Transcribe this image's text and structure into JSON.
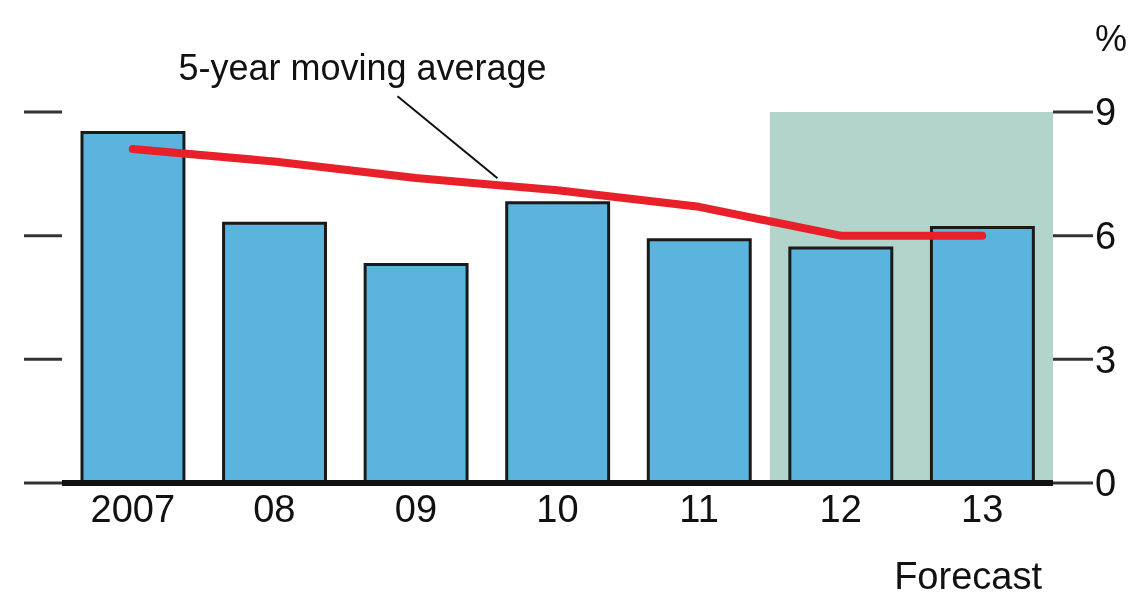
{
  "chart_data": {
    "type": "bar",
    "categories": [
      "2007",
      "08",
      "09",
      "10",
      "11",
      "12",
      "13"
    ],
    "series": [
      {
        "color": "#5bb4dd",
        "values": [
          8.5,
          6.3,
          5.3,
          6.8,
          5.9,
          5.7,
          6.2
        ]
      },
      {
        "type": "line",
        "name": "5-year moving average",
        "color": "#e8202a",
        "values": [
          8.1,
          7.8,
          7.4,
          7.1,
          6.7,
          6.0,
          6.0
        ]
      }
    ],
    "ylim": [
      0,
      9
    ],
    "yticks": [
      0,
      3,
      6,
      9
    ],
    "ylabel": "%",
    "bands": [
      {
        "axis": "x",
        "from": "12",
        "to": "13",
        "label": "Forecast",
        "color": "#b3d4cb"
      }
    ],
    "marker": "none"
  }
}
